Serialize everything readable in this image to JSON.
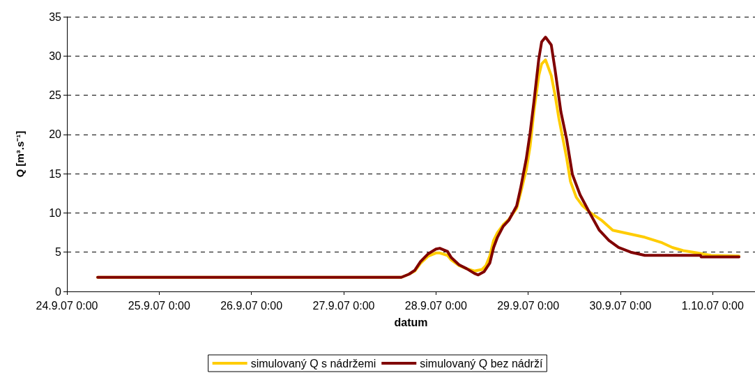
{
  "chart_data": {
    "type": "line",
    "xlabel": "datum",
    "ylabel": "Q [m³.s⁻¹]",
    "xlim": [
      "--09-24T00:00",
      "--10-01T11:00"
    ],
    "xticks": [
      {
        "value": "--09-24T00:00",
        "label": "24.9.07 0:00"
      },
      {
        "value": "--09-25T00:00",
        "label": "25.9.07 0:00"
      },
      {
        "value": "--09-26T00:00",
        "label": "26.9.07 0:00"
      },
      {
        "value": "--09-27T00:00",
        "label": "27.9.07 0:00"
      },
      {
        "value": "--09-28T00:00",
        "label": "28.9.07 0:00"
      },
      {
        "value": "--09-29T00:00",
        "label": "29.9.07 0:00"
      },
      {
        "value": "--09-30T00:00",
        "label": "30.9.07 0:00"
      },
      {
        "value": "--10-01T00:00",
        "label": "1.10.07 0:00"
      }
    ],
    "ylim": [
      0,
      35
    ],
    "yticks": [
      0,
      5,
      10,
      15,
      20,
      25,
      30,
      35
    ],
    "grid": "y",
    "legend": "bottom",
    "marker": "none",
    "line_style": "solid",
    "series": [
      {
        "name": "simulovaný Q s nádržemi",
        "color": "#ffcc00",
        "x": [
          "--09-24T08:00",
          "--09-27T15:00",
          "--09-27T17:00",
          "--09-27T18:30",
          "--09-27T20:00",
          "--09-27T22:00",
          "--09-28T00:00",
          "--09-28T01:00",
          "--09-28T03:00",
          "--09-28T04:00",
          "--09-28T06:00",
          "--09-28T08:00",
          "--09-28T10:00",
          "--09-28T12:00",
          "--09-28T13:00",
          "--09-28T14:00",
          "--09-28T15:00",
          "--09-28T16:00",
          "--09-28T17:30",
          "--09-28T19:00",
          "--09-28T21:00",
          "--09-28T22:00",
          "--09-28T23:30",
          "--09-29T00:30",
          "--09-29T01:30",
          "--09-29T02:45",
          "--09-29T03:30",
          "--09-29T04:30",
          "--09-29T06:00",
          "--09-29T07:00",
          "--09-29T08:00",
          "--09-29T09:00",
          "--09-29T10:00",
          "--09-29T11:00",
          "--09-29T12:30",
          "--09-29T14:00",
          "--09-29T16:00",
          "--09-29T19:00",
          "--09-29T22:00",
          "--09-30T01:45",
          "--09-30T06:20",
          "--09-30T10:50",
          "--09-30T13:30",
          "--09-30T16:20",
          "--09-30T20:00",
          "--09-30T23:30",
          "--10-01T06:50"
        ],
        "values": [
          1.8,
          1.8,
          2.2,
          2.6,
          3.6,
          4.5,
          4.9,
          4.9,
          4.6,
          4.0,
          3.3,
          2.9,
          2.6,
          2.8,
          3.3,
          4.5,
          6.5,
          7.5,
          8.5,
          9.2,
          10.6,
          12.5,
          15.5,
          18.5,
          23.0,
          27.5,
          29.0,
          29.5,
          27.5,
          25.0,
          22.0,
          19.5,
          17.0,
          14.0,
          12.0,
          11.0,
          10.1,
          9.1,
          7.8,
          7.4,
          6.9,
          6.2,
          5.6,
          5.2,
          4.9,
          4.6,
          4.5
        ]
      },
      {
        "name": "simulovaný Q bez nádrží",
        "color": "#800000",
        "x": [
          "--09-24T08:00",
          "--09-27T15:00",
          "--09-27T17:00",
          "--09-27T18:30",
          "--09-27T20:00",
          "--09-27T22:00",
          "--09-28T00:00",
          "--09-28T01:00",
          "--09-28T03:00",
          "--09-28T04:00",
          "--09-28T06:00",
          "--09-28T08:00",
          "--09-28T10:00",
          "--09-28T11:00",
          "--09-28T12:30",
          "--09-28T14:00",
          "--09-28T15:00",
          "--09-28T16:00",
          "--09-28T17:30",
          "--09-28T19:00",
          "--09-28T21:00",
          "--09-28T22:00",
          "--09-28T23:30",
          "--09-29T00:30",
          "--09-29T01:30",
          "--09-29T02:45",
          "--09-29T03:30",
          "--09-29T04:30",
          "--09-29T06:00",
          "--09-29T07:00",
          "--09-29T08:30",
          "--09-29T10:00",
          "--09-29T11:30",
          "--09-29T13:30",
          "--09-29T16:00",
          "--09-29T18:30",
          "--09-29T21:00",
          "--09-29T23:30",
          "--09-30T02:40",
          "--09-30T06:20",
          "--09-30T20:50",
          "--09-30T21:00",
          "--10-01T06:50"
        ],
        "values": [
          1.8,
          1.8,
          2.2,
          2.7,
          3.8,
          4.8,
          5.4,
          5.5,
          5.1,
          4.3,
          3.4,
          2.9,
          2.3,
          2.1,
          2.5,
          3.6,
          5.6,
          6.9,
          8.3,
          9.1,
          10.9,
          13.1,
          16.9,
          20.2,
          24.2,
          29.6,
          31.8,
          32.4,
          31.4,
          28.2,
          22.9,
          19.4,
          14.9,
          12.3,
          10.0,
          7.8,
          6.5,
          5.6,
          5.0,
          4.6,
          4.6,
          4.4,
          4.4
        ]
      }
    ]
  }
}
